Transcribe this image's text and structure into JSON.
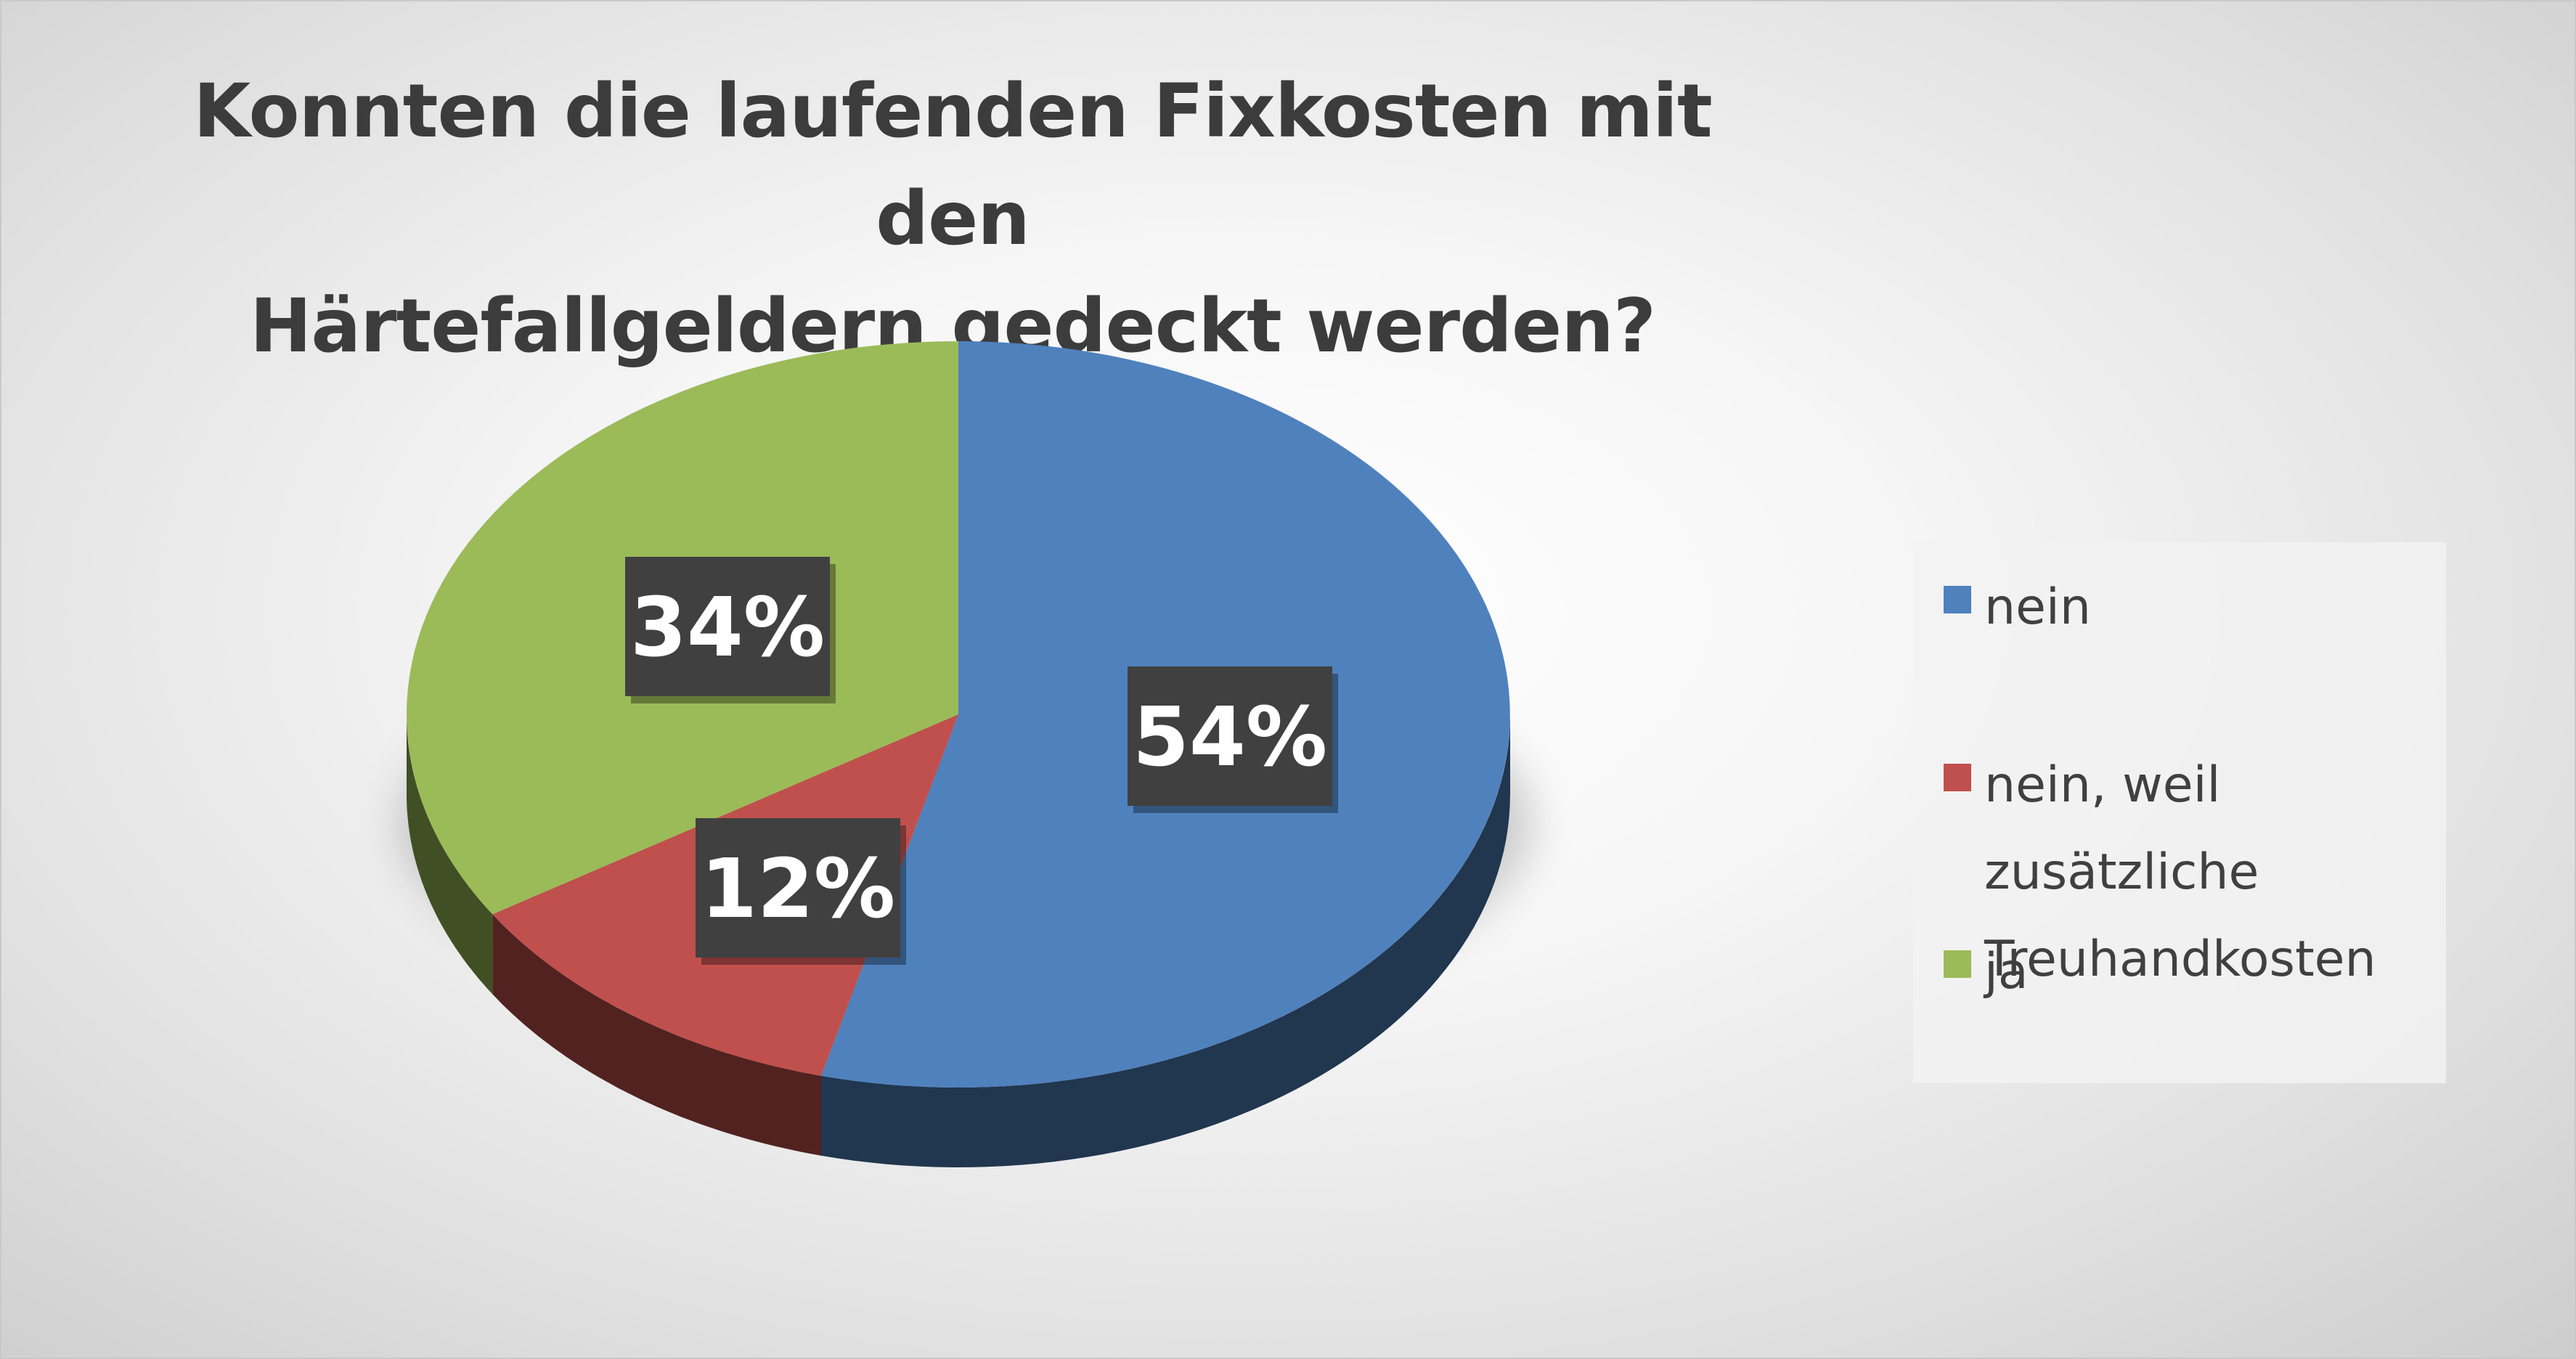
{
  "chart_data": {
    "type": "pie",
    "title": "Konnten die laufenden Fixkosten mit den Härtefallgeldern gedeckt   werden?",
    "title_lines": [
      "Konnten die laufenden Fixkosten mit den",
      "Härtefallgeldern gedeckt   werden?"
    ],
    "style": "3d",
    "legend_position": "right",
    "slices": [
      {
        "label": "nein",
        "value": 54,
        "display": "54%",
        "color": "#4F81BD"
      },
      {
        "label": "nein, weil zusätzliche Treuhandkosten",
        "display": "12%",
        "value": 12,
        "color": "#C0504D"
      },
      {
        "label": "ja",
        "value": 34,
        "display": "34%",
        "color": "#9BBB59"
      }
    ],
    "legend_labels": [
      "nein",
      "nein, weil zusätzliche\nTreuhandkosten",
      "ja"
    ]
  }
}
